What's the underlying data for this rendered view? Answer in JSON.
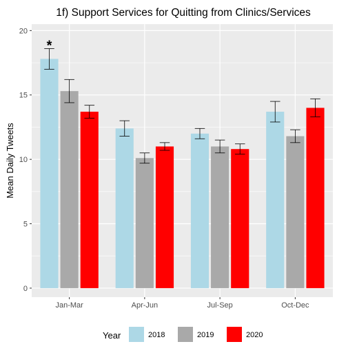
{
  "chart_data": {
    "type": "bar",
    "title": "1f) Support Services for Quitting from Clinics/Services",
    "xlabel": "",
    "ylabel": "Mean Daily Tweets",
    "ylim": [
      -0.7,
      20.5
    ],
    "yticks": [
      0,
      5,
      10,
      15,
      20
    ],
    "grid": true,
    "categories": [
      "Jan-Mar",
      "Apr-Jun",
      "Jul-Sep",
      "Oct-Dec"
    ],
    "series": [
      {
        "name": "2018",
        "color": "#ADD8E6",
        "values": [
          17.8,
          12.4,
          12.0,
          13.7
        ],
        "error_low": [
          17.0,
          11.8,
          11.6,
          12.9
        ],
        "error_high": [
          18.6,
          13.0,
          12.4,
          14.5
        ]
      },
      {
        "name": "2019",
        "color": "#A9A9A9",
        "values": [
          15.3,
          10.1,
          11.0,
          11.8
        ],
        "error_low": [
          14.4,
          9.7,
          10.5,
          11.3
        ],
        "error_high": [
          16.2,
          10.5,
          11.5,
          12.3
        ]
      },
      {
        "name": "2020",
        "color": "#FF0000",
        "values": [
          13.7,
          11.0,
          10.8,
          14.0
        ],
        "error_low": [
          13.2,
          10.7,
          10.4,
          13.3
        ],
        "error_high": [
          14.2,
          11.3,
          11.2,
          14.7
        ]
      }
    ],
    "annotations": [
      {
        "text": "*",
        "category": "Jan-Mar",
        "series": "2018"
      }
    ],
    "legend": {
      "title": "Year",
      "placement": "bottom"
    }
  }
}
